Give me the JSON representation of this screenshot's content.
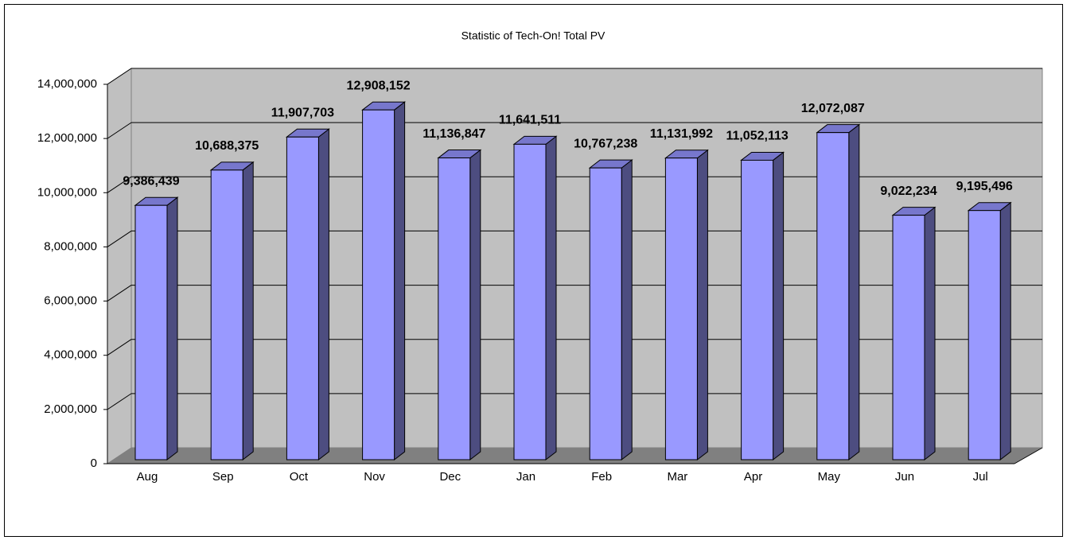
{
  "chart_data": {
    "type": "bar3d",
    "title": "Statistic of Tech-On! Total PV",
    "categories": [
      "Aug",
      "Sep",
      "Oct",
      "Nov",
      "Dec",
      "Jan",
      "Feb",
      "Mar",
      "Apr",
      "May",
      "Jun",
      "Jul"
    ],
    "values": [
      9386439,
      10688375,
      11907703,
      12908152,
      11136847,
      11641511,
      10767238,
      11131992,
      11052113,
      12072087,
      9022234,
      9195496
    ],
    "value_labels": [
      "9,386,439",
      "10,688,375",
      "11,907,703",
      "12,908,152",
      "11,136,847",
      "11,641,511",
      "10,767,238",
      "11,131,992",
      "11,052,113",
      "12,072,087",
      "9,022,234",
      "9,195,496"
    ],
    "color": "#9999ff",
    "ylim": [
      0,
      14000000
    ],
    "yticks": [
      0,
      {
        "value": 2000000,
        "label": "2,000,000"
      },
      {
        "value": 4000000,
        "label": "4,000,000"
      },
      {
        "value": 6000000,
        "label": "6,000,000"
      },
      {
        "value": 8000000,
        "label": "8,000,000"
      },
      {
        "value": 10000000,
        "label": "10,000,000"
      },
      {
        "value": 12000000,
        "label": "12,000,000"
      },
      {
        "value": 14000000,
        "label": "14,000,000"
      }
    ],
    "grid": true
  }
}
